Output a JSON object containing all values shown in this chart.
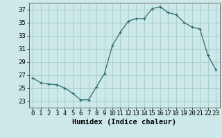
{
  "x": [
    0,
    1,
    2,
    3,
    4,
    5,
    6,
    7,
    8,
    9,
    10,
    11,
    12,
    13,
    14,
    15,
    16,
    17,
    18,
    19,
    20,
    21,
    22,
    23
  ],
  "y": [
    26.5,
    25.8,
    25.6,
    25.5,
    25.0,
    24.2,
    23.2,
    23.2,
    25.2,
    27.2,
    31.5,
    33.5,
    35.2,
    35.6,
    35.6,
    37.1,
    37.4,
    36.5,
    36.2,
    35.0,
    34.3,
    34.0,
    30.0,
    27.8
  ],
  "bg_color": "#cce8e8",
  "grid_color": "#aacfcf",
  "line_color": "#2a6b6b",
  "marker_color": "#2a6b6b",
  "xlabel": "Humidex (Indice chaleur)",
  "ylim": [
    22,
    38
  ],
  "xlim": [
    -0.5,
    23.5
  ],
  "yticks": [
    23,
    25,
    27,
    29,
    31,
    33,
    35,
    37
  ],
  "xticks": [
    0,
    1,
    2,
    3,
    4,
    5,
    6,
    7,
    8,
    9,
    10,
    11,
    12,
    13,
    14,
    15,
    16,
    17,
    18,
    19,
    20,
    21,
    22,
    23
  ],
  "xlabel_fontsize": 7.5,
  "tick_fontsize": 6.5
}
